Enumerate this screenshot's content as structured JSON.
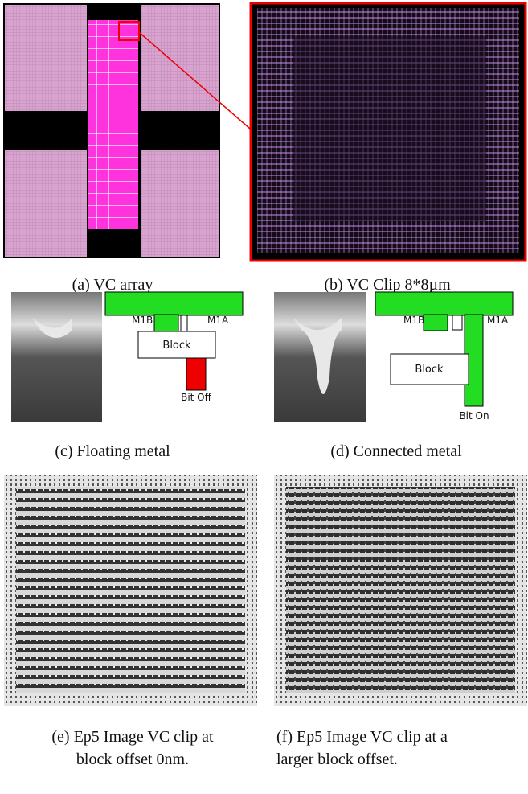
{
  "panels": [
    {
      "caption": "(a) VC array"
    },
    {
      "caption": "(b) VC Clip 8*8µm"
    },
    {
      "caption": "(c) Floating metal",
      "diagram": {
        "m1b": "M1B",
        "m1a": "M1A",
        "block": "Block",
        "bit": "Bit Off"
      }
    },
    {
      "caption": "(d) Connected metal",
      "diagram": {
        "m1b": "M1B",
        "m1a": "M1A",
        "block": "Block",
        "bit": "Bit On"
      }
    },
    {
      "caption_lines": [
        "(e) Ep5 Image VC clip at",
        "block offset 0nm."
      ]
    },
    {
      "caption_lines": [
        "(f) Ep5 Image VC clip at a",
        "larger block offset."
      ]
    }
  ]
}
